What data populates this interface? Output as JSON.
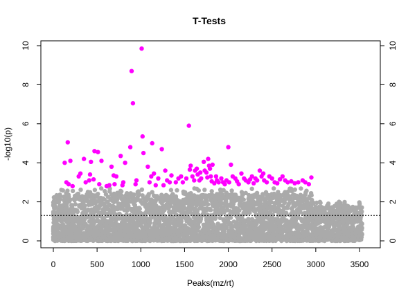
{
  "chart_data": {
    "type": "scatter",
    "title": "T-Tests",
    "xlabel": "Peaks(mz/rt)",
    "ylabel": "-log10(p)",
    "xlim": [
      -80,
      3660
    ],
    "ylim": [
      -0.4,
      10.3
    ],
    "x_ticks": [
      0,
      500,
      1000,
      1500,
      2000,
      2500,
      3000,
      3500
    ],
    "y_ticks": [
      0,
      2,
      4,
      6,
      8,
      10
    ],
    "right_axis_ticks": [
      0,
      2,
      4,
      6,
      8,
      10
    ],
    "threshold": 1.3,
    "threshold_style": "dotted",
    "significant_color": "#ff00ff",
    "nonsignificant_color": "#aaaaaa",
    "n_peaks": 3550,
    "significant_points": [
      [
        130,
        4.0
      ],
      [
        150,
        3.0
      ],
      [
        165,
        5.05
      ],
      [
        175,
        2.9
      ],
      [
        195,
        4.1
      ],
      [
        220,
        2.8
      ],
      [
        290,
        3.3
      ],
      [
        310,
        3.45
      ],
      [
        350,
        4.2
      ],
      [
        370,
        3.0
      ],
      [
        410,
        3.1
      ],
      [
        420,
        3.4
      ],
      [
        430,
        4.05
      ],
      [
        460,
        3.15
      ],
      [
        470,
        4.6
      ],
      [
        510,
        4.55
      ],
      [
        525,
        2.9
      ],
      [
        550,
        4.1
      ],
      [
        610,
        2.8
      ],
      [
        640,
        2.85
      ],
      [
        665,
        3.8
      ],
      [
        690,
        3.35
      ],
      [
        700,
        2.9
      ],
      [
        720,
        3.3
      ],
      [
        770,
        4.35
      ],
      [
        790,
        2.85
      ],
      [
        800,
        3.0
      ],
      [
        820,
        4.0
      ],
      [
        880,
        4.8
      ],
      [
        895,
        8.7
      ],
      [
        910,
        7.05
      ],
      [
        940,
        2.9
      ],
      [
        950,
        3.1
      ],
      [
        1010,
        9.85
      ],
      [
        1020,
        5.35
      ],
      [
        1030,
        4.5
      ],
      [
        1080,
        3.8
      ],
      [
        1100,
        3.0
      ],
      [
        1120,
        3.3
      ],
      [
        1130,
        5.0
      ],
      [
        1150,
        3.45
      ],
      [
        1170,
        2.85
      ],
      [
        1200,
        3.2
      ],
      [
        1240,
        4.7
      ],
      [
        1260,
        2.85
      ],
      [
        1280,
        3.6
      ],
      [
        1300,
        3.1
      ],
      [
        1330,
        3.0
      ],
      [
        1350,
        3.35
      ],
      [
        1400,
        3.0
      ],
      [
        1430,
        3.2
      ],
      [
        1460,
        3.3
      ],
      [
        1480,
        3.0
      ],
      [
        1520,
        3.2
      ],
      [
        1550,
        5.9
      ],
      [
        1560,
        3.65
      ],
      [
        1570,
        3.85
      ],
      [
        1590,
        3.3
      ],
      [
        1610,
        3.1
      ],
      [
        1620,
        3.6
      ],
      [
        1640,
        3.7
      ],
      [
        1650,
        3.4
      ],
      [
        1670,
        3.1
      ],
      [
        1680,
        3.5
      ],
      [
        1690,
        3.2
      ],
      [
        1720,
        4.05
      ],
      [
        1730,
        3.6
      ],
      [
        1750,
        3.5
      ],
      [
        1760,
        3.25
      ],
      [
        1770,
        4.2
      ],
      [
        1780,
        3.85
      ],
      [
        1790,
        3.7
      ],
      [
        1800,
        3.3
      ],
      [
        1810,
        3.05
      ],
      [
        1820,
        3.9
      ],
      [
        1840,
        2.95
      ],
      [
        1860,
        3.3
      ],
      [
        1870,
        3.1
      ],
      [
        1890,
        3.0
      ],
      [
        1920,
        3.2
      ],
      [
        1940,
        3.0
      ],
      [
        1960,
        2.9
      ],
      [
        1980,
        3.1
      ],
      [
        2000,
        4.8
      ],
      [
        2010,
        3.0
      ],
      [
        2030,
        3.9
      ],
      [
        2050,
        3.3
      ],
      [
        2080,
        3.2
      ],
      [
        2100,
        3.05
      ],
      [
        2120,
        2.9
      ],
      [
        2150,
        3.45
      ],
      [
        2180,
        3.2
      ],
      [
        2200,
        3.1
      ],
      [
        2230,
        3.0
      ],
      [
        2250,
        3.15
      ],
      [
        2270,
        3.3
      ],
      [
        2290,
        2.95
      ],
      [
        2310,
        3.2
      ],
      [
        2330,
        3.1
      ],
      [
        2360,
        3.6
      ],
      [
        2380,
        3.3
      ],
      [
        2400,
        3.45
      ],
      [
        2410,
        3.1
      ],
      [
        2440,
        3.0
      ],
      [
        2470,
        3.3
      ],
      [
        2500,
        3.2
      ],
      [
        2530,
        3.0
      ],
      [
        2560,
        2.95
      ],
      [
        2590,
        3.15
      ],
      [
        2620,
        3.3
      ],
      [
        2650,
        3.1
      ],
      [
        2680,
        3.0
      ],
      [
        2720,
        3.05
      ],
      [
        2760,
        2.95
      ],
      [
        2800,
        3.0
      ],
      [
        2850,
        3.1
      ],
      [
        2880,
        3.0
      ],
      [
        2920,
        2.9
      ],
      [
        2950,
        3.25
      ]
    ]
  }
}
